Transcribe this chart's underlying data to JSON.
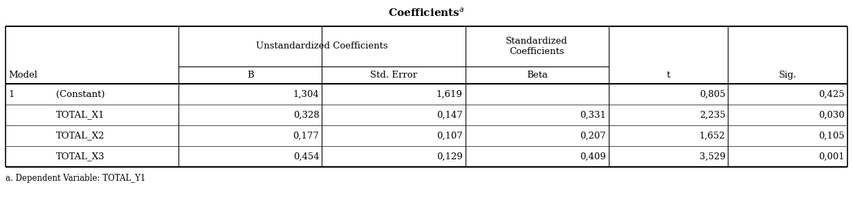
{
  "title": "Coefficients$^a$",
  "footnote": "a. Dependent Variable: TOTAL_Y1",
  "header1_unstd": "Unstandardized Coefficients",
  "header1_std": "Standardized\nCoefficients",
  "headers2": [
    "Model",
    "",
    "B",
    "Std. Error",
    "Beta",
    "t",
    "Sig."
  ],
  "rows": [
    [
      "1",
      "(Constant)",
      "1,304",
      "1,619",
      "",
      "0,805",
      "0,425"
    ],
    [
      "",
      "TOTAL_X1",
      "0,328",
      "0,147",
      "0,331",
      "2,235",
      "0,030"
    ],
    [
      "",
      "TOTAL_X2",
      "0,177",
      "0,107",
      "0,207",
      "1,652",
      "0,105"
    ],
    [
      "",
      "TOTAL_X3",
      "0,454",
      "0,129",
      "0,409",
      "3,529",
      "0,001"
    ]
  ],
  "col_widths_pts": [
    40,
    105,
    120,
    120,
    120,
    100,
    100
  ],
  "bg_color": "#ffffff",
  "line_color": "#000000",
  "font_size": 9.5,
  "title_font_size": 11
}
